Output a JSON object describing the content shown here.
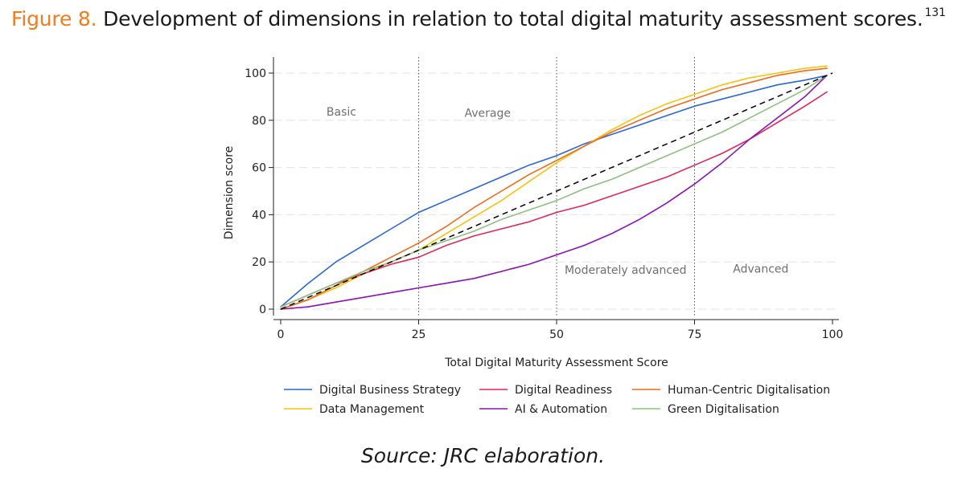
{
  "figure": {
    "label": "Figure 8.",
    "title": "Development of dimensions in relation to total digital maturity assessment scores.",
    "footnote": "131",
    "source": "Source: JRC elaboration."
  },
  "chart_data": {
    "type": "line",
    "xlabel": "Total Digital Maturity Assessment Score",
    "ylabel": "Dimension score",
    "xlim": [
      0,
      100
    ],
    "ylim": [
      -3,
      105
    ],
    "xticks": [
      0,
      25,
      50,
      75,
      100
    ],
    "yticks": [
      0,
      20,
      40,
      60,
      80,
      100
    ],
    "x": [
      0,
      5,
      10,
      15,
      20,
      25,
      30,
      35,
      40,
      45,
      50,
      55,
      60,
      65,
      70,
      75,
      80,
      85,
      90,
      95,
      99
    ],
    "series": [
      {
        "name": "Digital Business Strategy",
        "color": "#2a66d4",
        "values": [
          1,
          11,
          20,
          27,
          34,
          41,
          46,
          51,
          56,
          61,
          65,
          70,
          74,
          78,
          82,
          86,
          89,
          92,
          95,
          97,
          99
        ]
      },
      {
        "name": "Data Management",
        "color": "#f5c20d",
        "values": [
          0,
          4,
          9,
          15,
          20,
          25,
          32,
          39,
          46,
          54,
          62,
          69,
          76,
          82,
          87,
          91,
          95,
          98,
          100,
          102,
          103
        ]
      },
      {
        "name": "Digital Readiness",
        "color": "#e0265a",
        "values": [
          1,
          6,
          11,
          15,
          19,
          22,
          27,
          31,
          34,
          37,
          41,
          44,
          48,
          52,
          56,
          61,
          66,
          72,
          79,
          86,
          92
        ]
      },
      {
        "name": "AI & Automation",
        "color": "#8a12b8",
        "values": [
          0,
          1,
          3,
          5,
          7,
          9,
          11,
          13,
          16,
          19,
          23,
          27,
          32,
          38,
          45,
          53,
          62,
          72,
          81,
          90,
          99
        ]
      },
      {
        "name": "Human-Centric Digitalisation",
        "color": "#ee6a1c",
        "values": [
          0,
          4,
          10,
          16,
          22,
          28,
          35,
          43,
          50,
          57,
          63,
          69,
          75,
          80,
          85,
          89,
          93,
          96,
          99,
          101,
          102
        ]
      },
      {
        "name": "Green Digitalisation",
        "color": "#8dc07e",
        "values": [
          1,
          6,
          11,
          16,
          20,
          25,
          29,
          33,
          38,
          42,
          46,
          51,
          55,
          60,
          65,
          70,
          75,
          81,
          87,
          93,
          99
        ]
      }
    ],
    "reference_line": {
      "name": "diagonal",
      "color": "#000000",
      "from": [
        0,
        0
      ],
      "to": [
        100,
        100
      ]
    },
    "regions": [
      {
        "label": "Basic",
        "x": 11,
        "y": 82
      },
      {
        "label": "Average",
        "x": 37.5,
        "y": 81.5
      },
      {
        "label": "Moderately advanced",
        "x": 62.5,
        "y": 15
      },
      {
        "label": "Advanced",
        "x": 87,
        "y": 15.5
      }
    ],
    "region_boundaries": [
      25,
      50,
      75
    ],
    "legend": {
      "placement": "bottom",
      "columns": 3,
      "order": [
        "Digital Business Strategy",
        "Digital Readiness",
        "Human-Centric Digitalisation",
        "Data Management",
        "AI & Automation",
        "Green Digitalisation"
      ]
    }
  }
}
